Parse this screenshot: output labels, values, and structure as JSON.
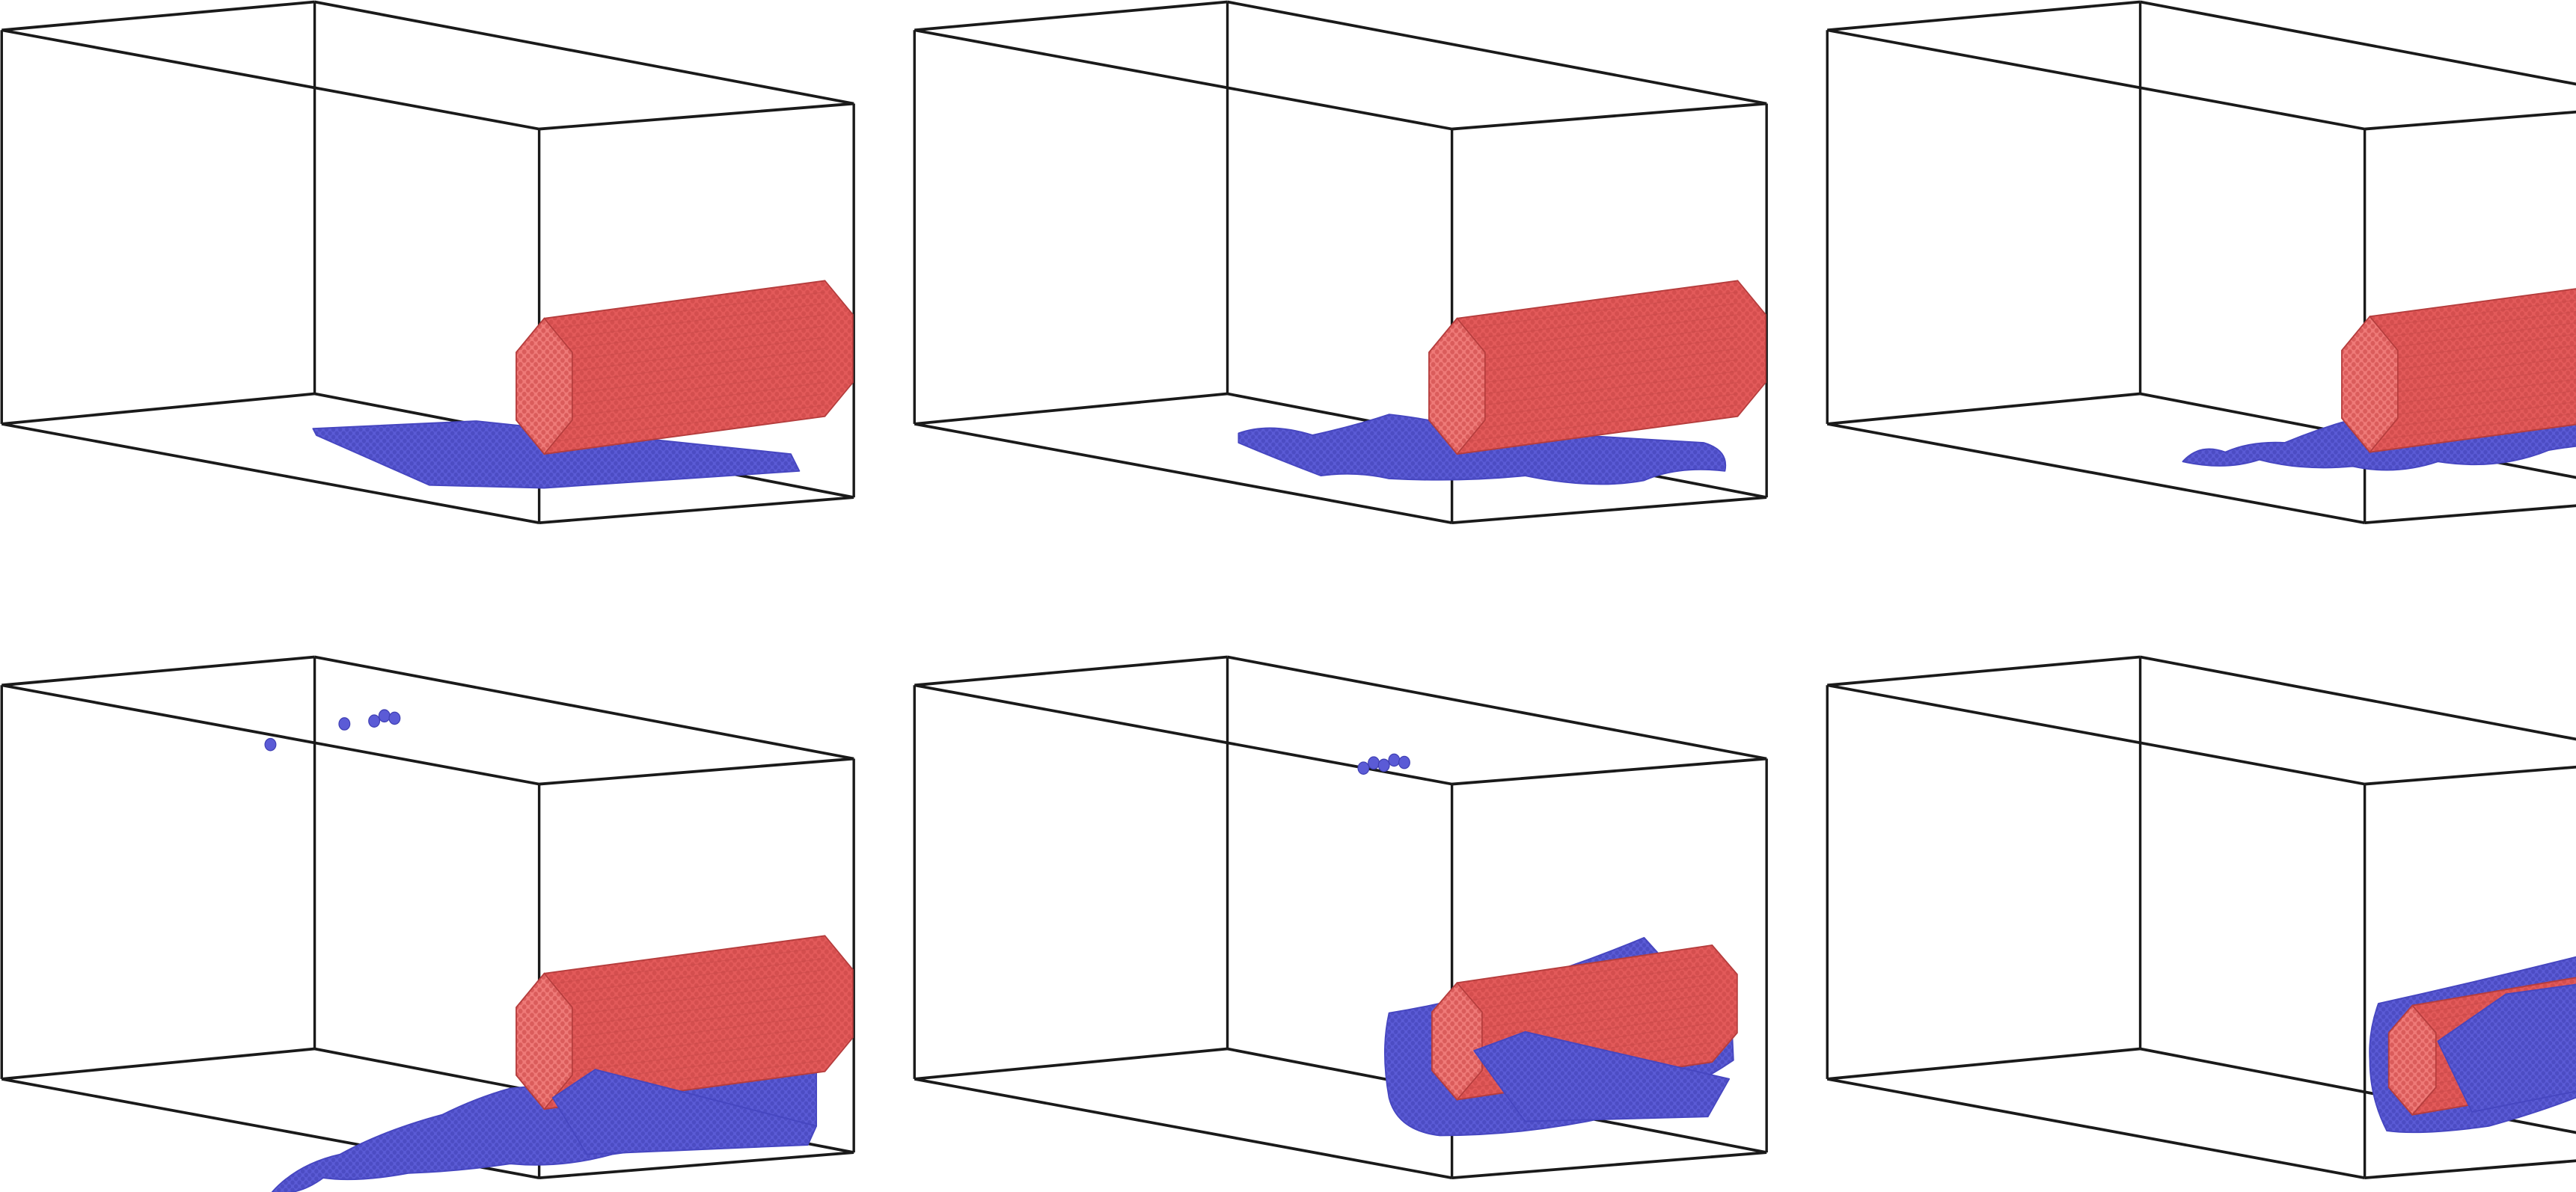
{
  "figure": {
    "panels": [
      {
        "id": "frame-1",
        "stage": "flat-sheet",
        "stray_clusters": 0
      },
      {
        "id": "frame-2",
        "stage": "ruffled-sheet",
        "stray_clusters": 0
      },
      {
        "id": "frame-3",
        "stage": "sheet-lifting",
        "stray_clusters": 0
      },
      {
        "id": "frame-4",
        "stage": "partial-wrap",
        "stray_clusters": 3
      },
      {
        "id": "frame-5",
        "stage": "mostly-wrapped",
        "stray_clusters": 1
      },
      {
        "id": "frame-6",
        "stage": "fully-wrapped",
        "stray_clusters": 0
      }
    ],
    "colors": {
      "box_edge": "#1a1a1a",
      "rod_fill": "#e35a5a",
      "rod_dot": "#c84444",
      "rod_end": "#ef7a78",
      "sheet_fill": "#5b5bd6",
      "sheet_dot": "#3f3fb3",
      "background": "#ffffff"
    }
  }
}
